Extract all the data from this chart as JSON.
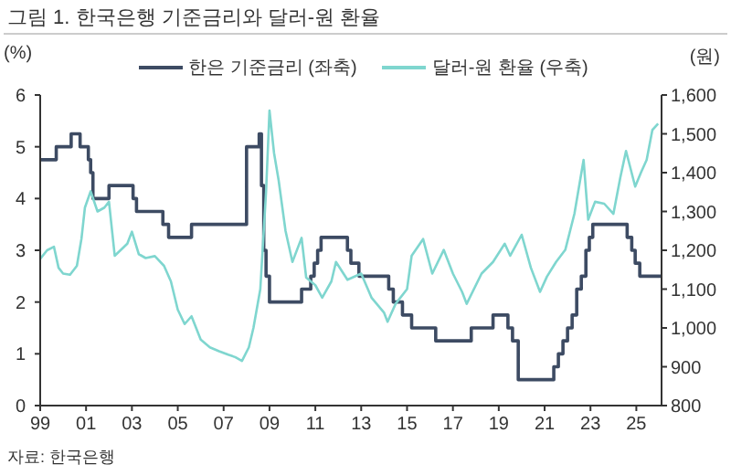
{
  "chart_data": {
    "type": "line",
    "title": "그림 1. 한국은행 기준금리와 달러-원 환율",
    "ylabel": "(%)",
    "y2label": "(원)",
    "annotations": [
      "자료: 한국은행"
    ],
    "xlim": [
      1999,
      2026.1
    ],
    "xticks": [
      {
        "value": 1999,
        "label": "99"
      },
      {
        "value": 2001,
        "label": "01"
      },
      {
        "value": 2003,
        "label": "03"
      },
      {
        "value": 2005,
        "label": "05"
      },
      {
        "value": 2007,
        "label": "07"
      },
      {
        "value": 2009,
        "label": "09"
      },
      {
        "value": 2011,
        "label": "11"
      },
      {
        "value": 2013,
        "label": "13"
      },
      {
        "value": 2015,
        "label": "15"
      },
      {
        "value": 2017,
        "label": "17"
      },
      {
        "value": 2019,
        "label": "19"
      },
      {
        "value": 2021,
        "label": "21"
      },
      {
        "value": 2023,
        "label": "23"
      },
      {
        "value": 2025,
        "label": "25"
      }
    ],
    "ylim": [
      0,
      6
    ],
    "yticks": [
      0,
      1,
      2,
      3,
      4,
      5,
      6
    ],
    "y2lim": [
      800,
      1600
    ],
    "y2ticks": [
      800,
      900,
      {
        "value": 1000,
        "label": "1,000"
      },
      {
        "value": 1100,
        "label": "1,100"
      },
      {
        "value": 1200,
        "label": "1,200"
      },
      {
        "value": 1300,
        "label": "1,300"
      },
      {
        "value": 1400,
        "label": "1,400"
      },
      {
        "value": 1500,
        "label": "1,500"
      },
      {
        "value": 1600,
        "label": "1,600"
      }
    ],
    "grid": false,
    "legend": "top",
    "line_style": "solid",
    "marker": "none",
    "series": [
      {
        "name": "한은 기준금리 (좌축)",
        "type": "step",
        "color": "#3d4b63",
        "x": [
          1999,
          1999.7,
          2000.35,
          2000.74,
          2001.1,
          2001.2,
          2001.3,
          2002.0,
          2003.05,
          2003.2,
          2004.35,
          2004.6,
          2005.6,
          2008.0,
          2008.55,
          2008.65,
          2008.75,
          2008.85,
          2009.0,
          2010.4,
          2010.8,
          2010.95,
          2011.1,
          2011.25,
          2011.35,
          2012.4,
          2012.55,
          2012.9,
          2014.2,
          2014.4,
          2014.8,
          2015.2,
          2016.25,
          2017.8,
          2018.75,
          2019.4,
          2019.6,
          2019.85,
          2021.4,
          2021.6,
          2021.8,
          2022.0,
          2022.2,
          2022.4,
          2022.6,
          2022.8,
          2022.95,
          2023.1,
          2024.6,
          2024.8,
          2024.95,
          2025.15,
          2026.1
        ],
        "values": [
          4.75,
          5.0,
          5.25,
          5.0,
          4.75,
          4.5,
          4.0,
          4.25,
          4.0,
          3.75,
          3.5,
          3.25,
          3.5,
          5.0,
          5.25,
          4.25,
          3.0,
          2.5,
          2.0,
          2.25,
          2.5,
          2.75,
          3.0,
          3.25,
          3.25,
          3.0,
          2.75,
          2.5,
          2.25,
          2.0,
          1.75,
          1.5,
          1.25,
          1.5,
          1.75,
          1.5,
          1.25,
          0.5,
          0.75,
          1.0,
          1.25,
          1.5,
          1.75,
          2.25,
          2.5,
          3.0,
          3.25,
          3.5,
          3.25,
          3.0,
          2.75,
          2.5,
          2.5
        ]
      },
      {
        "name": "달러-원 환율 (우축)",
        "type": "line",
        "axis": "y2",
        "color": "#7fd6cf",
        "x": [
          1999.0,
          1999.3,
          1999.6,
          1999.8,
          2000.0,
          2000.3,
          2000.6,
          2000.8,
          2000.95,
          2001.2,
          2001.5,
          2001.8,
          2002.0,
          2002.25,
          2002.5,
          2002.8,
          2003.0,
          2003.3,
          2003.6,
          2004.0,
          2004.4,
          2004.7,
          2005.0,
          2005.3,
          2005.6,
          2006.0,
          2006.4,
          2006.8,
          2007.2,
          2007.5,
          2007.8,
          2008.1,
          2008.3,
          2008.6,
          2008.85,
          2009.0,
          2009.2,
          2009.4,
          2009.7,
          2010.0,
          2010.4,
          2010.6,
          2011.0,
          2011.3,
          2011.7,
          2011.9,
          2012.4,
          2013.0,
          2013.45,
          2014.0,
          2014.15,
          2014.5,
          2015.0,
          2015.2,
          2015.7,
          2016.1,
          2016.6,
          2017.0,
          2017.4,
          2017.6,
          2018.25,
          2018.75,
          2019.26,
          2019.5,
          2020.0,
          2020.4,
          2020.8,
          2021.1,
          2021.5,
          2021.9,
          2022.3,
          2022.7,
          2022.9,
          2023.2,
          2023.6,
          2024.0,
          2024.3,
          2024.55,
          2024.95,
          2025.2,
          2025.45,
          2025.7,
          2025.95
        ],
        "values": [
          1178,
          1200,
          1209,
          1155,
          1140,
          1137,
          1160,
          1230,
          1310,
          1352,
          1300,
          1310,
          1325,
          1186,
          1200,
          1217,
          1248,
          1190,
          1180,
          1185,
          1160,
          1120,
          1047,
          1010,
          1030,
          970,
          950,
          940,
          931,
          925,
          915,
          950,
          1000,
          1100,
          1350,
          1560,
          1450,
          1380,
          1250,
          1170,
          1232,
          1130,
          1110,
          1078,
          1120,
          1170,
          1124,
          1140,
          1078,
          1039,
          1016,
          1062,
          1100,
          1186,
          1229,
          1140,
          1201,
          1140,
          1093,
          1062,
          1140,
          1170,
          1217,
          1186,
          1240,
          1155,
          1093,
          1132,
          1170,
          1201,
          1294,
          1433,
          1279,
          1325,
          1320,
          1294,
          1387,
          1456,
          1364,
          1400,
          1433,
          1510,
          1526
        ]
      }
    ]
  }
}
